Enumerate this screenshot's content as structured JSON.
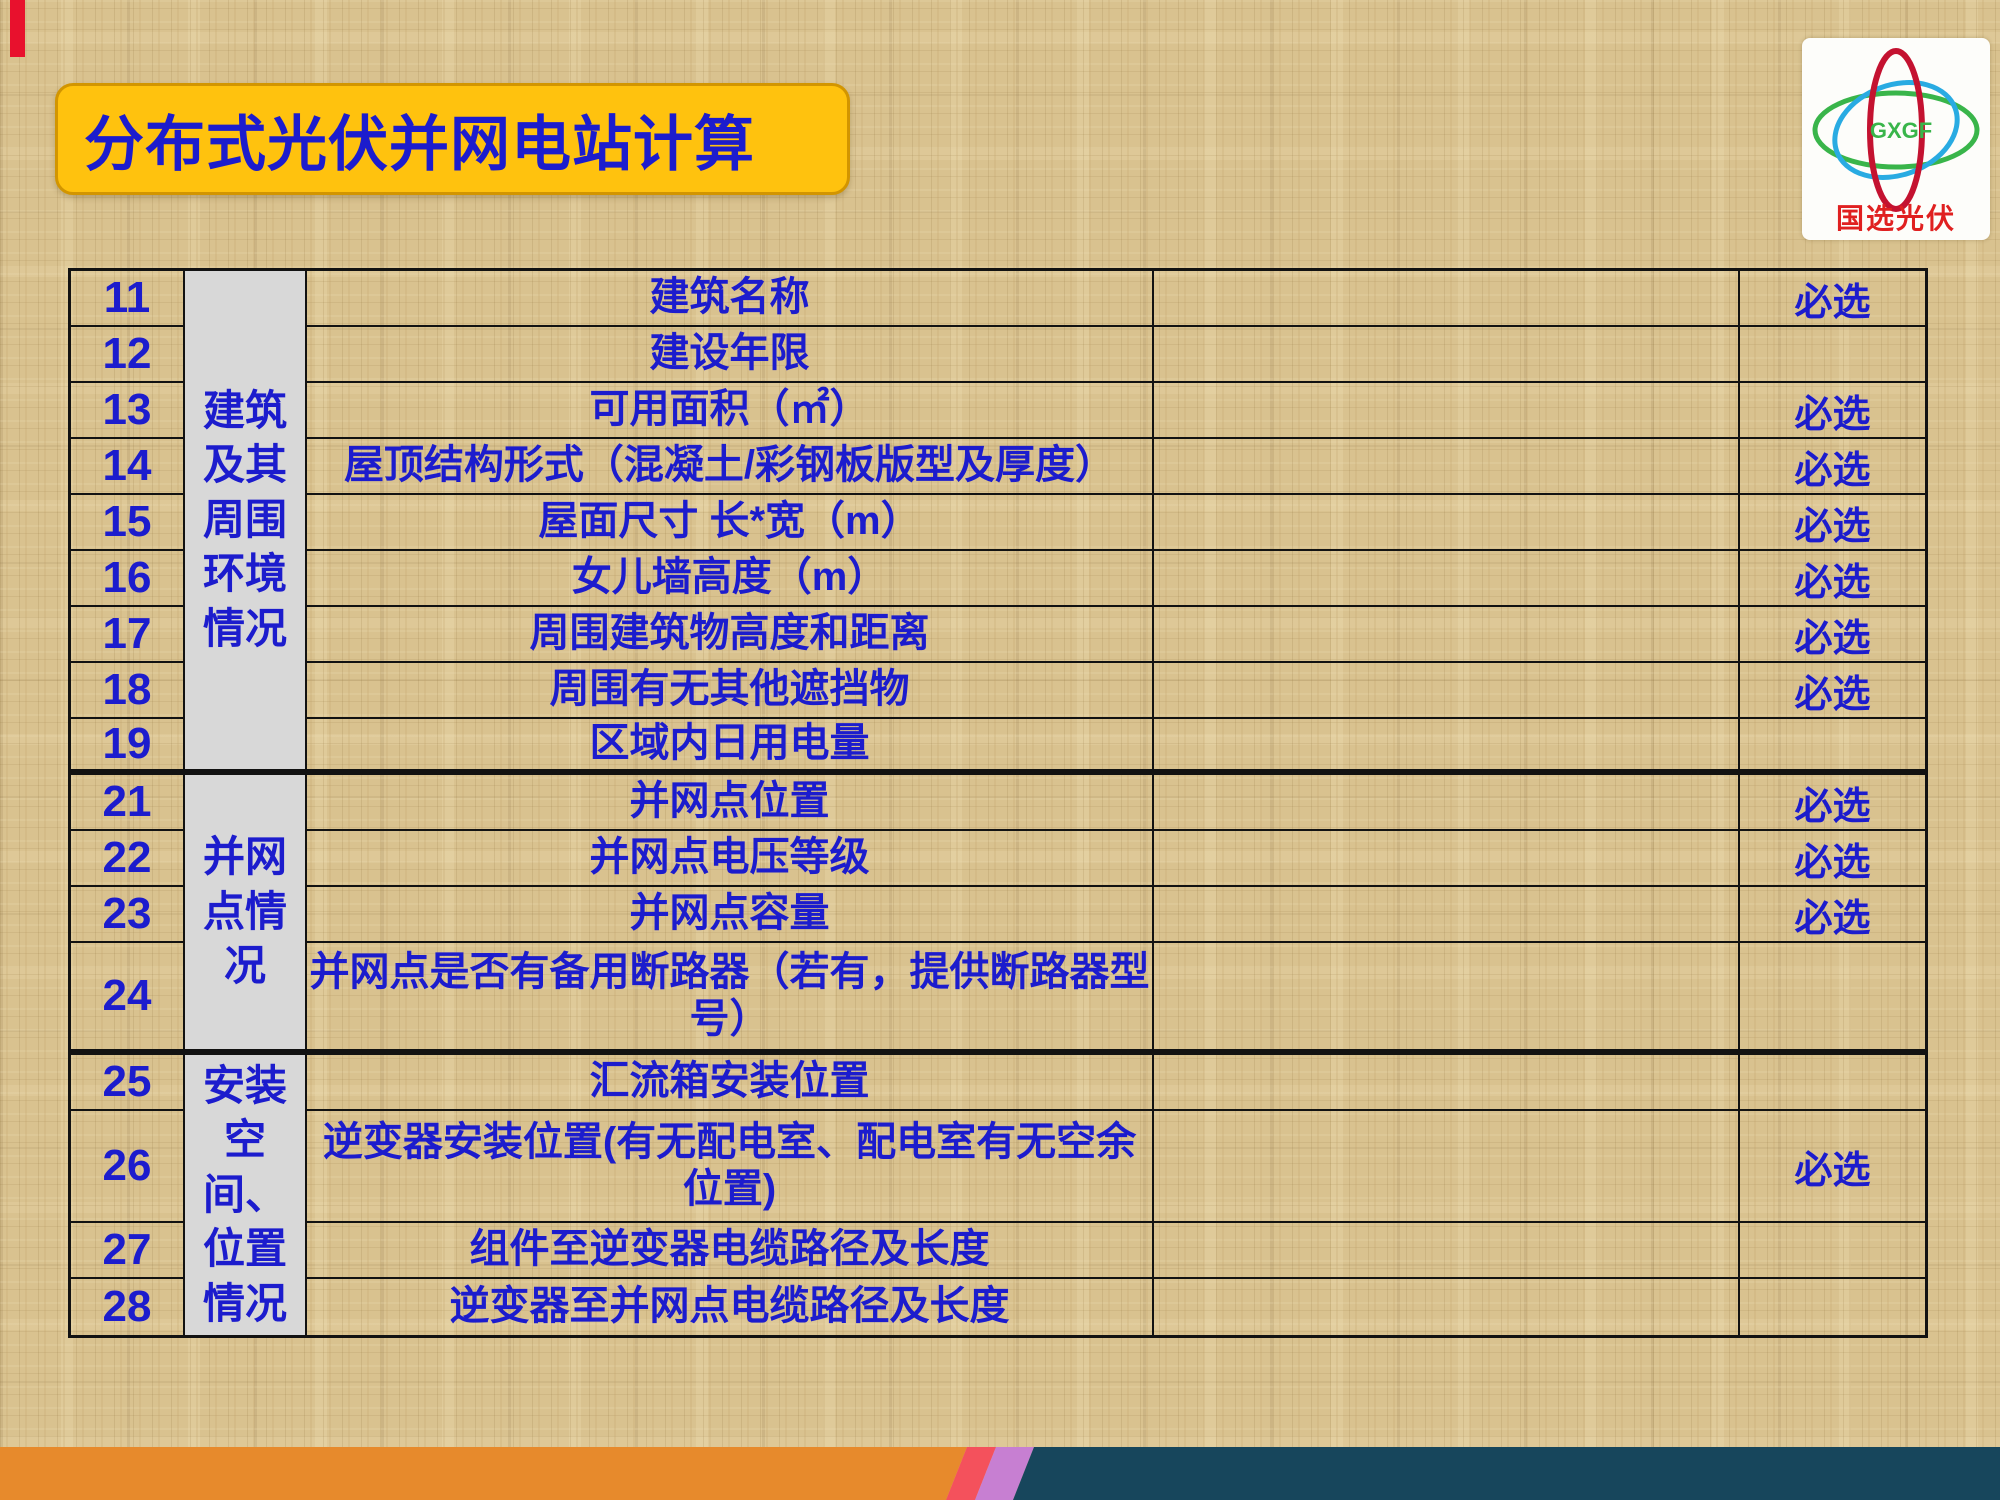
{
  "title": "分布式光伏并网电站计算",
  "logo": {
    "abbr": "GXGF",
    "name": "国选光伏"
  },
  "table": {
    "categories": [
      {
        "label": "建筑及其周围环境情况",
        "row_start": 0,
        "row_end": 8
      },
      {
        "label": "并网点情况",
        "row_start": 9,
        "row_end": 12
      },
      {
        "label": "安装空间、位置情况",
        "row_start": 13,
        "row_end": 16
      }
    ],
    "rows": [
      {
        "num": "11",
        "item": "建筑名称",
        "value": "",
        "required": "必选"
      },
      {
        "num": "12",
        "item": "建设年限",
        "value": "",
        "required": ""
      },
      {
        "num": "13",
        "item": "可用面积（㎡）",
        "value": "",
        "required": "必选"
      },
      {
        "num": "14",
        "item": "屋顶结构形式（混凝土/彩钢板版型及厚度）",
        "value": "",
        "required": "必选"
      },
      {
        "num": "15",
        "item": "屋面尺寸 长*宽（m）",
        "value": "",
        "required": "必选"
      },
      {
        "num": "16",
        "item": "女儿墙高度（m）",
        "value": "",
        "required": "必选"
      },
      {
        "num": "17",
        "item": "周围建筑物高度和距离",
        "value": "",
        "required": "必选"
      },
      {
        "num": "18",
        "item": "周围有无其他遮挡物",
        "value": "",
        "required": "必选"
      },
      {
        "num": "19",
        "item": "区域内日用电量",
        "value": "",
        "required": ""
      },
      {
        "num": "21",
        "item": "并网点位置",
        "value": "",
        "required": "必选"
      },
      {
        "num": "22",
        "item": "并网点电压等级",
        "value": "",
        "required": "必选"
      },
      {
        "num": "23",
        "item": "并网点容量",
        "value": "",
        "required": "必选"
      },
      {
        "num": "24",
        "item": "并网点是否有备用断路器（若有，提供断路器型号）",
        "value": "",
        "required": ""
      },
      {
        "num": "25",
        "item": "汇流箱安装位置",
        "value": "",
        "required": ""
      },
      {
        "num": "26",
        "item": "逆变器安装位置(有无配电室、配电室有无空余位置)",
        "value": "",
        "required": "必选"
      },
      {
        "num": "27",
        "item": "组件至逆变器电缆路径及长度",
        "value": "",
        "required": ""
      },
      {
        "num": "28",
        "item": "逆变器至并网点电缆路径及长度",
        "value": "",
        "required": ""
      }
    ]
  },
  "colors": {
    "text_blue": "#1c1ccd",
    "title_bg": "#ffc20e",
    "category_bg": "#d8d8d8",
    "table_border": "#121212",
    "accent_red": "#e8112d",
    "footer_orange": "#e78a2c",
    "footer_red": "#f4515c",
    "footer_purple": "#c77fd2",
    "footer_navy": "#17465c",
    "logo_red": "#c41230",
    "logo_blue": "#29abe2",
    "logo_green": "#39b54a"
  }
}
